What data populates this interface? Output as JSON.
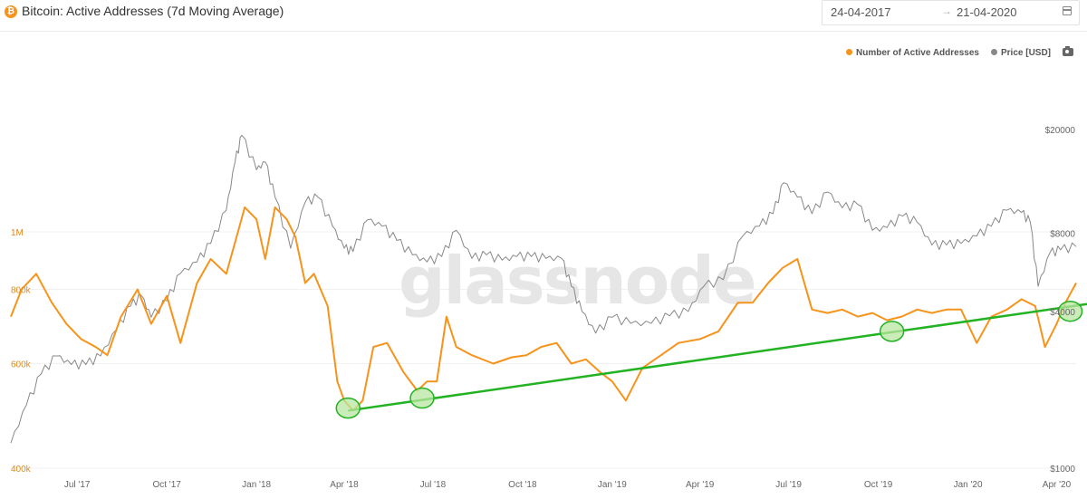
{
  "header": {
    "title": "Bitcoin: Active Addresses (7d Moving Average)",
    "icon": "bitcoin-icon",
    "date_from": "24-04-2017",
    "date_arrow": "→",
    "date_to": "21-04-2020"
  },
  "colors": {
    "active_addresses": "#f7931a",
    "price": "#888888",
    "trendline": "#22b222",
    "highlight_fill": "#b8e6a0"
  },
  "watermark": "glassnode",
  "chart_data": {
    "type": "line",
    "title": "Bitcoin: Active Addresses (7d Moving Average)",
    "x_tick_labels": [
      "Jul '17",
      "Oct '17",
      "Jan '18",
      "Apr '18",
      "Jul '18",
      "Oct '18",
      "Jan '19",
      "Apr '19",
      "Jul '19",
      "Oct '19",
      "Jan '20",
      "Apr '20"
    ],
    "y_left_tick_labels": [
      "400k",
      "600k",
      "800k",
      "1M"
    ],
    "y_right_tick_labels": [
      "$1000",
      "$4000",
      "$8000",
      "$20000"
    ],
    "y_left_scale": "log",
    "y_right_scale": "log",
    "x_range": [
      "2017-04-24",
      "2020-04-21"
    ],
    "legend_placement": "top-right",
    "legend": [
      "Number of Active Addresses",
      "Price [USD]"
    ],
    "series": [
      {
        "name": "Number of Active Addresses",
        "axis": "left",
        "x": [
          "2017-04-24",
          "2017-05-05",
          "2017-05-20",
          "2017-06-05",
          "2017-06-20",
          "2017-07-05",
          "2017-07-20",
          "2017-08-01",
          "2017-08-15",
          "2017-09-01",
          "2017-09-15",
          "2017-10-01",
          "2017-10-15",
          "2017-11-01",
          "2017-11-15",
          "2017-12-01",
          "2017-12-10",
          "2017-12-20",
          "2018-01-01",
          "2018-01-10",
          "2018-01-20",
          "2018-02-01",
          "2018-02-10",
          "2018-02-20",
          "2018-03-01",
          "2018-03-15",
          "2018-03-25",
          "2018-04-01",
          "2018-04-10",
          "2018-04-20",
          "2018-05-01",
          "2018-05-15",
          "2018-06-01",
          "2018-06-15",
          "2018-06-25",
          "2018-07-05",
          "2018-07-15",
          "2018-07-25",
          "2018-08-10",
          "2018-09-01",
          "2018-09-20",
          "2018-10-05",
          "2018-10-20",
          "2018-11-05",
          "2018-11-20",
          "2018-12-05",
          "2018-12-20",
          "2019-01-01",
          "2019-01-15",
          "2019-02-01",
          "2019-02-20",
          "2019-03-10",
          "2019-04-01",
          "2019-04-20",
          "2019-05-10",
          "2019-05-25",
          "2019-06-10",
          "2019-06-25",
          "2019-07-10",
          "2019-07-25",
          "2019-08-10",
          "2019-08-25",
          "2019-09-10",
          "2019-09-25",
          "2019-10-10",
          "2019-10-25",
          "2019-11-10",
          "2019-11-25",
          "2019-12-10",
          "2019-12-25",
          "2020-01-10",
          "2020-01-25",
          "2020-02-10",
          "2020-02-25",
          "2020-03-10",
          "2020-03-20",
          "2020-04-01",
          "2020-04-10",
          "2020-04-21"
        ],
        "y": [
          720000,
          800000,
          850000,
          760000,
          700000,
          660000,
          640000,
          620000,
          720000,
          800000,
          700000,
          780000,
          650000,
          820000,
          900000,
          850000,
          960000,
          1100000,
          1050000,
          900000,
          1100000,
          1050000,
          980000,
          820000,
          850000,
          750000,
          560000,
          520000,
          500000,
          520000,
          640000,
          650000,
          580000,
          540000,
          560000,
          560000,
          720000,
          640000,
          620000,
          600000,
          615000,
          620000,
          640000,
          650000,
          600000,
          610000,
          580000,
          560000,
          520000,
          590000,
          620000,
          650000,
          660000,
          680000,
          760000,
          760000,
          820000,
          870000,
          900000,
          740000,
          730000,
          740000,
          720000,
          730000,
          710000,
          720000,
          740000,
          730000,
          740000,
          740000,
          650000,
          720000,
          740000,
          770000,
          750000,
          640000,
          700000,
          760000,
          820000
        ]
      },
      {
        "name": "Price [USD]",
        "axis": "right",
        "x": [
          "2017-04-24",
          "2017-05-10",
          "2017-05-25",
          "2017-06-10",
          "2017-06-25",
          "2017-07-10",
          "2017-07-25",
          "2017-08-10",
          "2017-08-25",
          "2017-09-05",
          "2017-09-15",
          "2017-10-01",
          "2017-10-15",
          "2017-11-01",
          "2017-11-15",
          "2017-12-01",
          "2017-12-10",
          "2017-12-17",
          "2018-01-01",
          "2018-01-10",
          "2018-01-20",
          "2018-02-05",
          "2018-02-20",
          "2018-03-05",
          "2018-03-20",
          "2018-04-01",
          "2018-04-10",
          "2018-04-25",
          "2018-05-10",
          "2018-05-25",
          "2018-06-10",
          "2018-06-25",
          "2018-07-10",
          "2018-07-25",
          "2018-08-10",
          "2018-08-25",
          "2018-09-10",
          "2018-09-25",
          "2018-10-10",
          "2018-10-25",
          "2018-11-10",
          "2018-11-20",
          "2018-12-01",
          "2018-12-15",
          "2019-01-01",
          "2019-01-20",
          "2019-02-10",
          "2019-03-01",
          "2019-03-20",
          "2019-04-05",
          "2019-04-25",
          "2019-05-15",
          "2019-06-01",
          "2019-06-15",
          "2019-06-26",
          "2019-07-10",
          "2019-07-25",
          "2019-08-10",
          "2019-08-25",
          "2019-09-10",
          "2019-09-25",
          "2019-10-10",
          "2019-10-26",
          "2019-11-10",
          "2019-11-25",
          "2019-12-10",
          "2019-12-25",
          "2020-01-10",
          "2020-01-25",
          "2020-02-10",
          "2020-02-25",
          "2020-03-05",
          "2020-03-13",
          "2020-03-25",
          "2020-04-05",
          "2020-04-21"
        ],
        "y": [
          1250,
          1750,
          2300,
          2700,
          2500,
          2500,
          2700,
          3400,
          4200,
          4600,
          3800,
          4400,
          5600,
          6200,
          7300,
          9800,
          15000,
          19000,
          14000,
          15000,
          11000,
          7000,
          10500,
          11000,
          8500,
          7000,
          6800,
          9000,
          8500,
          7500,
          6600,
          6200,
          6500,
          8200,
          6400,
          6600,
          6300,
          6500,
          6500,
          6400,
          6400,
          5000,
          4000,
          3300,
          3800,
          3600,
          3600,
          3850,
          4000,
          5000,
          5300,
          7800,
          8500,
          9500,
          12500,
          11000,
          9500,
          11500,
          10000,
          10300,
          8200,
          8400,
          9300,
          8800,
          7200,
          7200,
          7300,
          7800,
          8500,
          9800,
          9600,
          8800,
          5000,
          6700,
          6900,
          7100
        ]
      }
    ],
    "annotations": {
      "trendline": {
        "from": [
          "2018-04-05",
          500000
        ],
        "to": [
          "2020-04-21",
          740000
        ],
        "color": "#22b222"
      },
      "highlight_circles": [
        {
          "x": "2018-04-05",
          "y": 505000
        },
        {
          "x": "2018-06-20",
          "y": 525000
        },
        {
          "x": "2019-10-15",
          "y": 680000
        },
        {
          "x": "2020-04-15",
          "y": 735000
        }
      ]
    }
  }
}
